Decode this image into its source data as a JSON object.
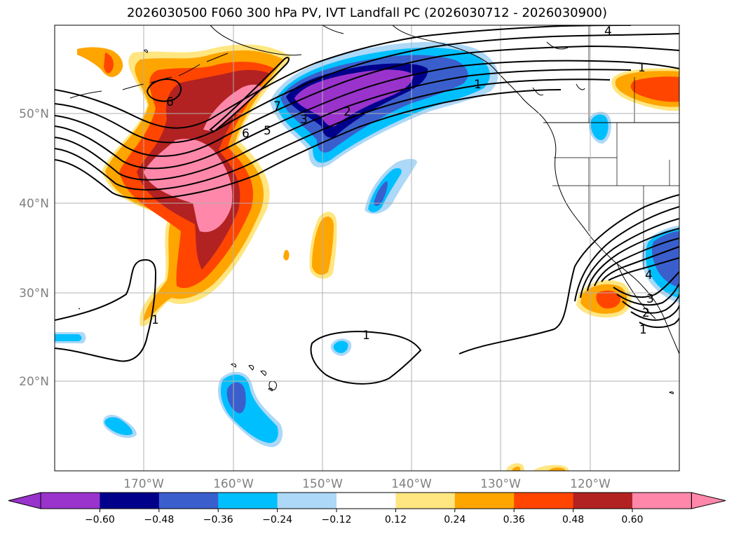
{
  "title": "2026030500 F060 300 hPa PV, IVT Landfall PC (2026030712 - 2026030900)",
  "lat_labels": [
    "50°N",
    "40°N",
    "30°N",
    "20°N"
  ],
  "lon_labels": [
    "170°W",
    "160°W",
    "150°W",
    "140°W",
    "130°W",
    "120°W"
  ],
  "contour_labels": [
    "4",
    "1",
    "6",
    "7",
    "2",
    "6",
    "5",
    "3",
    "1",
    "1",
    "2",
    "3",
    "4",
    "1",
    "1"
  ],
  "colorbar": {
    "tick_labels": [
      "−0.60",
      "−0.48",
      "−0.36",
      "−0.24",
      "−0.12",
      "0.12",
      "0.24",
      "0.36",
      "0.48",
      "0.60"
    ],
    "colors": [
      "#9933cc",
      "#00008b",
      "#3a5fcd",
      "#00bfff",
      "#add8f7",
      "#ffffff",
      "#ffe680",
      "#ffa500",
      "#ff4500",
      "#b22222",
      "#ff88aa"
    ]
  }
}
